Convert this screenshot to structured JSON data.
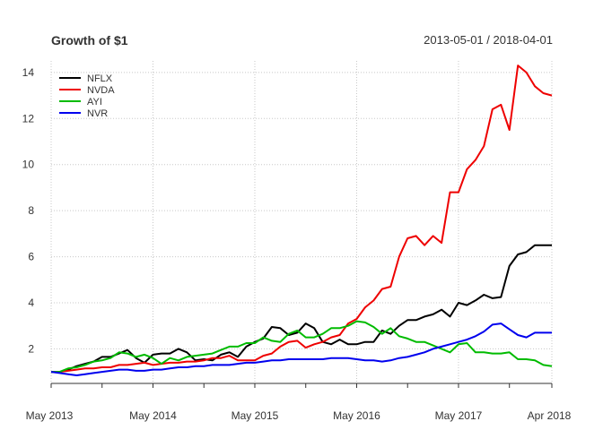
{
  "chart_data": {
    "type": "line",
    "title": "Growth of $1",
    "date_range": "2013-05-01 / 2018-04-01",
    "xlabel": "",
    "ylabel": "",
    "grid": true,
    "legend_position": "top-left",
    "x": [
      "2013-05",
      "2013-06",
      "2013-07",
      "2013-08",
      "2013-09",
      "2013-10",
      "2013-11",
      "2013-12",
      "2014-01",
      "2014-02",
      "2014-03",
      "2014-04",
      "2014-05",
      "2014-06",
      "2014-07",
      "2014-08",
      "2014-09",
      "2014-10",
      "2014-11",
      "2014-12",
      "2015-01",
      "2015-02",
      "2015-03",
      "2015-04",
      "2015-05",
      "2015-06",
      "2015-07",
      "2015-08",
      "2015-09",
      "2015-10",
      "2015-11",
      "2015-12",
      "2016-01",
      "2016-02",
      "2016-03",
      "2016-04",
      "2016-05",
      "2016-06",
      "2016-07",
      "2016-08",
      "2016-09",
      "2016-10",
      "2016-11",
      "2016-12",
      "2017-01",
      "2017-02",
      "2017-03",
      "2017-04",
      "2017-05",
      "2017-06",
      "2017-07",
      "2017-08",
      "2017-09",
      "2017-10",
      "2017-11",
      "2017-12",
      "2018-01",
      "2018-02",
      "2018-03",
      "2018-04"
    ],
    "x_ticks": [
      "May 2013",
      "May 2014",
      "May 2015",
      "May 2016",
      "May 2017",
      "Apr 2018"
    ],
    "y_ticks": [
      2,
      4,
      6,
      8,
      10,
      12,
      14
    ],
    "ylim": [
      0.5,
      14.5
    ],
    "series": [
      {
        "name": "NFLX",
        "color": "#000000",
        "values": [
          1.0,
          1.0,
          1.1,
          1.25,
          1.35,
          1.45,
          1.65,
          1.65,
          1.8,
          1.95,
          1.6,
          1.4,
          1.75,
          1.8,
          1.8,
          2.0,
          1.85,
          1.5,
          1.55,
          1.5,
          1.75,
          1.85,
          1.65,
          2.1,
          2.3,
          2.45,
          2.95,
          2.9,
          2.6,
          2.7,
          3.1,
          2.9,
          2.3,
          2.2,
          2.4,
          2.2,
          2.2,
          2.3,
          2.3,
          2.8,
          2.65,
          3.0,
          3.25,
          3.25,
          3.4,
          3.5,
          3.7,
          3.4,
          4.0,
          3.9,
          4.1,
          4.35,
          4.2,
          4.25,
          5.6,
          6.1,
          6.2,
          6.5,
          6.5,
          6.5
        ]
      },
      {
        "name": "NVDA",
        "color": "#ee0000",
        "values": [
          1.0,
          1.0,
          1.05,
          1.1,
          1.15,
          1.15,
          1.2,
          1.2,
          1.3,
          1.3,
          1.35,
          1.4,
          1.3,
          1.35,
          1.4,
          1.4,
          1.45,
          1.45,
          1.5,
          1.6,
          1.6,
          1.7,
          1.5,
          1.5,
          1.5,
          1.7,
          1.8,
          2.1,
          2.3,
          2.35,
          2.05,
          2.2,
          2.3,
          2.5,
          2.6,
          3.1,
          3.3,
          3.8,
          4.1,
          4.6,
          4.7,
          6.0,
          6.8,
          6.9,
          6.5,
          6.9,
          6.6,
          8.8,
          8.8,
          9.8,
          10.2,
          10.8,
          12.4,
          12.6,
          11.5,
          14.3,
          14.0,
          13.4,
          13.1,
          13.0
        ]
      },
      {
        "name": "AYI",
        "color": "#00bb00",
        "values": [
          1.0,
          1.0,
          1.15,
          1.2,
          1.3,
          1.45,
          1.5,
          1.6,
          1.85,
          1.8,
          1.65,
          1.75,
          1.6,
          1.35,
          1.6,
          1.5,
          1.65,
          1.7,
          1.75,
          1.8,
          1.95,
          2.1,
          2.1,
          2.25,
          2.25,
          2.5,
          2.35,
          2.3,
          2.65,
          2.8,
          2.5,
          2.5,
          2.65,
          2.9,
          2.9,
          3.0,
          3.2,
          3.15,
          2.95,
          2.65,
          2.9,
          2.55,
          2.45,
          2.3,
          2.3,
          2.15,
          2.0,
          1.85,
          2.2,
          2.25,
          1.85,
          1.85,
          1.8,
          1.8,
          1.85,
          1.55,
          1.55,
          1.5,
          1.3,
          1.25
        ]
      },
      {
        "name": "NVR",
        "color": "#0000ee",
        "values": [
          1.0,
          0.95,
          0.9,
          0.85,
          0.9,
          0.95,
          1.0,
          1.05,
          1.1,
          1.1,
          1.05,
          1.05,
          1.1,
          1.1,
          1.15,
          1.2,
          1.2,
          1.25,
          1.25,
          1.3,
          1.3,
          1.3,
          1.35,
          1.4,
          1.4,
          1.45,
          1.5,
          1.5,
          1.55,
          1.55,
          1.55,
          1.55,
          1.55,
          1.6,
          1.6,
          1.6,
          1.55,
          1.5,
          1.5,
          1.45,
          1.5,
          1.6,
          1.65,
          1.75,
          1.85,
          2.0,
          2.1,
          2.2,
          2.3,
          2.4,
          2.55,
          2.75,
          3.05,
          3.1,
          2.85,
          2.6,
          2.5,
          2.7,
          2.7,
          2.7
        ]
      }
    ]
  }
}
